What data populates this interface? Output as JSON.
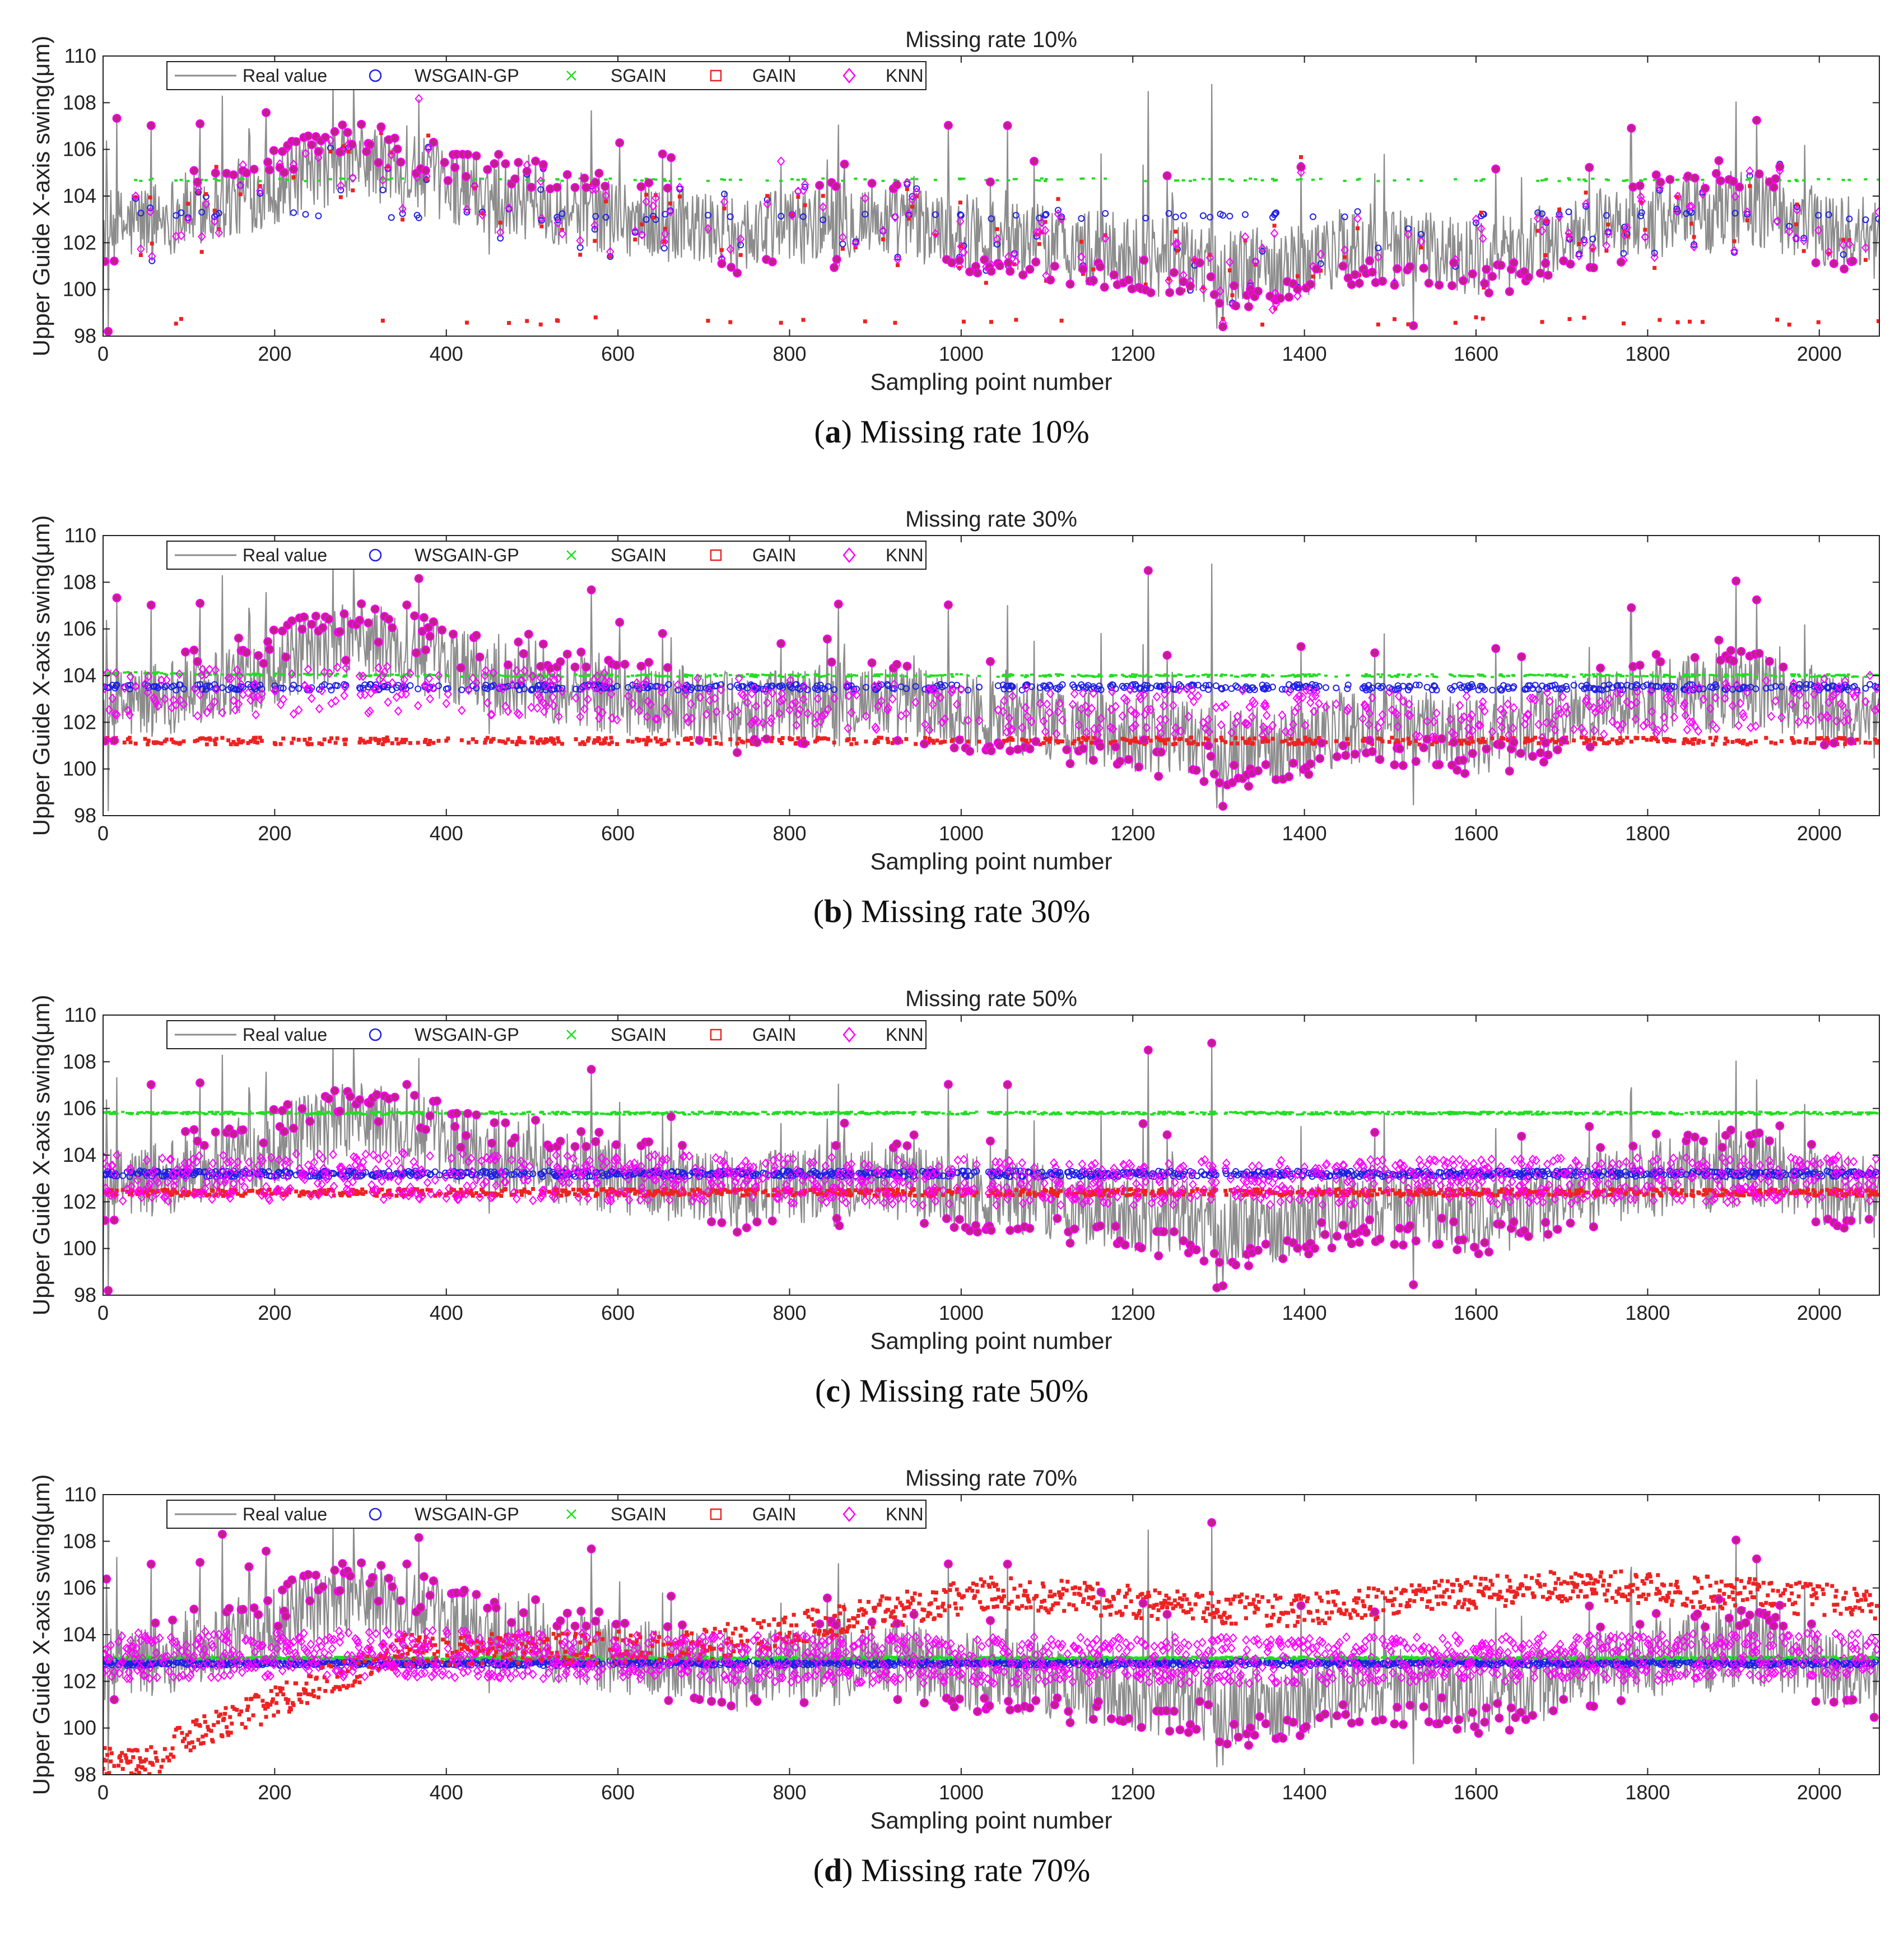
{
  "figure": {
    "xlabel": "Sampling point number",
    "ylabel": "Upper Guide X-axis swing(μm)"
  },
  "legend_labels": [
    "Real value",
    "WSGAIN-GP",
    "SGAIN",
    "GAIN",
    "KNN"
  ],
  "colors": {
    "real": "#8c8c8c",
    "wsgain": "#1f1fe6",
    "sgain": "#22dd22",
    "gain": "#ee2222",
    "knn": "#ff00ff",
    "knn_fill": "#c0208a"
  },
  "chart_data": [
    {
      "type": "line",
      "title": "Missing rate 10%",
      "caption_letter": "a",
      "caption_text": ") Missing rate 10%",
      "xlabel": "Sampling point number",
      "ylabel": "Upper Guide X-axis swing(μm)",
      "xlim": [
        0,
        2070
      ],
      "ylim": [
        98,
        110
      ],
      "xticks": [
        0,
        200,
        400,
        600,
        800,
        1000,
        1200,
        1400,
        1600,
        1800,
        2000
      ],
      "yticks": [
        98,
        100,
        102,
        104,
        106,
        108,
        110
      ],
      "series": [
        {
          "name": "Real value",
          "values": [
            102.5,
            103.8,
            105.6,
            104.1,
            103.2,
            102.4,
            103.1,
            102.3,
            101.6,
            100.9,
            101.8,
            101.4,
            102.9,
            103.5,
            102.1
          ]
        },
        {
          "name": "WSGAIN-GP",
          "values": [
            103.2,
            103.2,
            103.1,
            103.1,
            103.2,
            103.3,
            103.1
          ]
        },
        {
          "name": "SGAIN",
          "values": [
            104.7,
            104.7,
            104.7,
            104.7,
            104.7,
            104.7,
            104.7
          ]
        },
        {
          "name": "GAIN",
          "values": [
            98.6,
            98.6,
            98.7,
            98.6,
            98.6,
            98.7,
            98.6
          ]
        },
        {
          "name": "KNN",
          "values": [
            103.1,
            103.4,
            102.9,
            102.1,
            102.0,
            101.8,
            103.0
          ]
        }
      ]
    },
    {
      "type": "line",
      "title": "Missing rate 30%",
      "caption_letter": "b",
      "caption_text": ") Missing rate 30%",
      "xlabel": "Sampling point number",
      "ylabel": "Upper Guide X-axis swing(μm)",
      "xlim": [
        0,
        2070
      ],
      "ylim": [
        98,
        110
      ],
      "xticks": [
        0,
        200,
        400,
        600,
        800,
        1000,
        1200,
        1400,
        1600,
        1800,
        2000
      ],
      "yticks": [
        98,
        100,
        102,
        104,
        106,
        108,
        110
      ],
      "series": [
        {
          "name": "Real value",
          "values": [
            102.5,
            103.8,
            105.6,
            104.1,
            103.2,
            102.4,
            103.1,
            102.3,
            101.6,
            100.9,
            101.8,
            101.4,
            102.9,
            103.5,
            102.1
          ]
        },
        {
          "name": "WSGAIN-GP",
          "values": [
            103.5,
            103.5,
            103.5,
            103.5,
            103.5,
            103.5,
            103.5
          ]
        },
        {
          "name": "SGAIN",
          "values": [
            104.1,
            104.0,
            104.0,
            104.0,
            104.0,
            104.0,
            104.0
          ]
        },
        {
          "name": "GAIN",
          "values": [
            101.2,
            101.2,
            101.2,
            101.2,
            101.2,
            101.2,
            101.2
          ]
        },
        {
          "name": "KNN",
          "values": [
            103.2,
            103.4,
            103.0,
            102.5,
            102.4,
            102.3,
            103.1
          ]
        }
      ]
    },
    {
      "type": "line",
      "title": "Missing rate 50%",
      "caption_letter": "c",
      "caption_text": ") Missing rate 50%",
      "xlabel": "Sampling point number",
      "ylabel": "Upper Guide X-axis swing(μm)",
      "xlim": [
        0,
        2070
      ],
      "ylim": [
        98,
        110
      ],
      "xticks": [
        0,
        200,
        400,
        600,
        800,
        1000,
        1200,
        1400,
        1600,
        1800,
        2000
      ],
      "yticks": [
        98,
        100,
        102,
        104,
        106,
        108,
        110
      ],
      "series": [
        {
          "name": "Real value",
          "values": [
            102.5,
            103.8,
            105.6,
            104.1,
            103.2,
            102.4,
            103.1,
            102.3,
            101.6,
            100.9,
            101.8,
            101.4,
            102.9,
            103.5,
            102.1
          ]
        },
        {
          "name": "WSGAIN-GP",
          "values": [
            103.2,
            103.2,
            103.2,
            103.2,
            103.2,
            103.2,
            103.2
          ]
        },
        {
          "name": "SGAIN",
          "values": [
            105.8,
            105.8,
            105.8,
            105.8,
            105.8,
            105.8,
            105.8
          ]
        },
        {
          "name": "GAIN",
          "values": [
            102.4,
            102.4,
            102.4,
            102.4,
            102.4,
            102.4,
            102.4
          ]
        },
        {
          "name": "KNN",
          "values": [
            103.0,
            103.1,
            103.0,
            102.8,
            102.8,
            102.9,
            103.0
          ]
        }
      ]
    },
    {
      "type": "line",
      "title": "Missing rate 70%",
      "caption_letter": "d",
      "caption_text": ") Missing rate 70%",
      "xlabel": "Sampling point number",
      "ylabel": "Upper Guide X-axis swing(μm)",
      "xlim": [
        0,
        2070
      ],
      "ylim": [
        98,
        110
      ],
      "xticks": [
        0,
        200,
        400,
        600,
        800,
        1000,
        1200,
        1400,
        1600,
        1800,
        2000
      ],
      "yticks": [
        98,
        100,
        102,
        104,
        106,
        108,
        110
      ],
      "series": [
        {
          "name": "Real value",
          "values": [
            102.5,
            103.8,
            105.6,
            104.1,
            103.2,
            102.4,
            103.1,
            102.3,
            101.6,
            100.9,
            101.8,
            101.4,
            102.9,
            103.5,
            102.1
          ]
        },
        {
          "name": "WSGAIN-GP",
          "values": [
            102.8,
            102.8,
            102.8,
            102.8,
            102.8,
            102.8,
            102.8
          ]
        },
        {
          "name": "SGAIN",
          "values": [
            103.0,
            103.0,
            103.0,
            103.0,
            103.0,
            103.0,
            103.0
          ]
        },
        {
          "name": "GAIN",
          "values": [
            98.0,
            103.3,
            103.5,
            105.8,
            105.0,
            106.2,
            105.3
          ]
        },
        {
          "name": "KNN",
          "values": [
            103.1,
            103.2,
            103.0,
            102.9,
            102.9,
            103.0,
            103.1
          ]
        }
      ]
    }
  ]
}
